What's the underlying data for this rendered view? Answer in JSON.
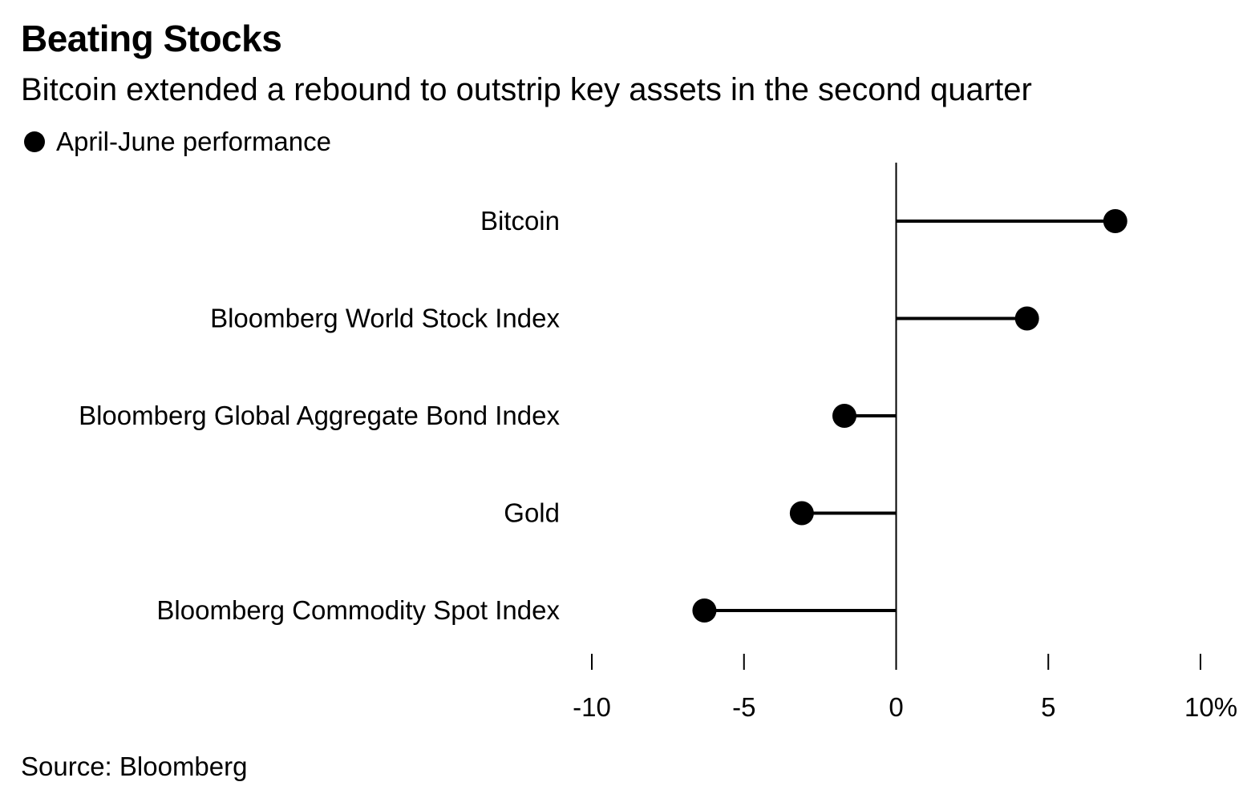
{
  "chart_data": {
    "type": "lollipop",
    "title": "Beating Stocks",
    "subtitle": "Bitcoin extended a rebound to outstrip key assets in the second quarter",
    "legend": {
      "label": "April-June performance",
      "position": "top-left"
    },
    "categories": [
      "Bitcoin",
      "Bloomberg World Stock Index",
      "Bloomberg Global Aggregate Bond Index",
      "Gold",
      "Bloomberg Commodity Spot Index"
    ],
    "series": [
      {
        "name": "April-June performance",
        "values": [
          7.2,
          4.3,
          -1.7,
          -3.1,
          -6.3
        ]
      }
    ],
    "xlim": [
      -10,
      10
    ],
    "x_ticks": [
      -10,
      -5,
      0,
      5,
      10
    ],
    "x_tick_labels": [
      "-10",
      "-5",
      "0",
      "5",
      "10%"
    ],
    "grid": false,
    "source": "Source: Bloomberg",
    "colors": {
      "marker": "#000000",
      "line": "#000000"
    }
  }
}
